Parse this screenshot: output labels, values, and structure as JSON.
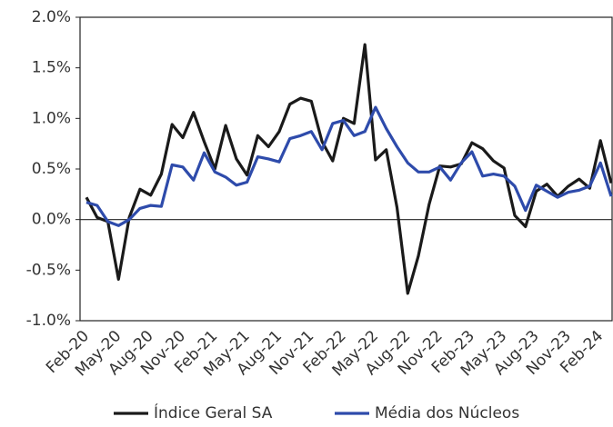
{
  "chart_data": {
    "type": "line",
    "categories": [
      "Feb-20",
      null,
      null,
      "May-20",
      null,
      null,
      "Aug-20",
      null,
      null,
      "Nov-20",
      null,
      null,
      "Feb-21",
      null,
      null,
      "May-21",
      null,
      null,
      "Aug-21",
      null,
      null,
      "Nov-21",
      null,
      null,
      "Feb-22",
      null,
      null,
      "May-22",
      null,
      null,
      "Aug-22",
      null,
      null,
      "Nov-22",
      null,
      null,
      "Feb-23",
      null,
      null,
      "May-23",
      null,
      null,
      "Aug-23",
      null,
      null,
      "Nov-23",
      null,
      null,
      "Feb-24",
      null
    ],
    "series": [
      {
        "name": "Índice Geral SA",
        "color": "#1a1a1a",
        "values": [
          0.22,
          0.02,
          -0.02,
          -0.59,
          0.02,
          0.3,
          0.24,
          0.45,
          0.94,
          0.81,
          1.06,
          0.77,
          0.5,
          0.93,
          0.6,
          0.44,
          0.83,
          0.72,
          0.87,
          1.14,
          1.2,
          1.17,
          0.77,
          0.58,
          1.0,
          0.95,
          1.73,
          0.59,
          0.69,
          0.12,
          -0.73,
          -0.36,
          0.15,
          0.53,
          0.52,
          0.55,
          0.76,
          0.7,
          0.58,
          0.51,
          0.04,
          -0.07,
          0.28,
          0.35,
          0.23,
          0.33,
          0.4,
          0.31,
          0.78,
          0.36
        ]
      },
      {
        "name": "Média dos Núcleos",
        "color": "#2e4bab",
        "values": [
          0.17,
          0.14,
          -0.02,
          -0.06,
          0.0,
          0.11,
          0.14,
          0.13,
          0.54,
          0.52,
          0.39,
          0.66,
          0.47,
          0.42,
          0.34,
          0.37,
          0.62,
          0.6,
          0.57,
          0.8,
          0.83,
          0.87,
          0.69,
          0.95,
          0.98,
          0.83,
          0.87,
          1.11,
          0.9,
          0.72,
          0.56,
          0.47,
          0.47,
          0.52,
          0.39,
          0.56,
          0.67,
          0.43,
          0.45,
          0.43,
          0.33,
          0.09,
          0.34,
          0.28,
          0.22,
          0.27,
          0.29,
          0.33,
          0.56,
          0.23
        ]
      }
    ],
    "ylim": [
      -1.0,
      2.0
    ],
    "yticks": [
      {
        "value": -1.0,
        "label": "-1.0%"
      },
      {
        "value": -0.5,
        "label": "-0.5%"
      },
      {
        "value": 0,
        "label": "0.0%"
      },
      {
        "value": 0.5,
        "label": "0.5%"
      },
      {
        "value": 1.0,
        "label": "1.0%"
      },
      {
        "value": 1.5,
        "label": "1.5%"
      },
      {
        "value": 2.0,
        "label": "2.0%"
      }
    ],
    "legend": "bottom"
  }
}
